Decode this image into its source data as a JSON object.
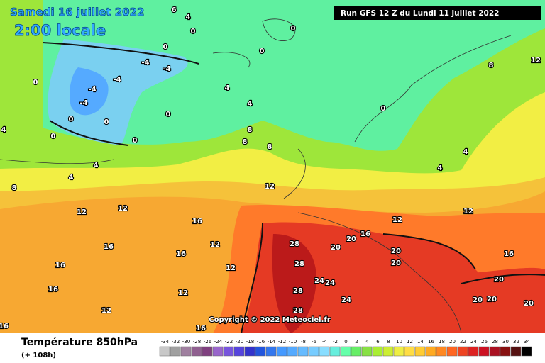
{
  "header": {
    "date": "Samedi 16 juillet 2022",
    "time": "2:00 locale",
    "run": "Run GFS 12 Z du Lundi 11 juillet 2022"
  },
  "copyright": "Copyright © 2022 Meteociel.fr",
  "footer": {
    "title": "Température 850hPa",
    "lead": "(+ 108h)"
  },
  "legend": {
    "values": [
      -34,
      -32,
      -30,
      -28,
      -26,
      -24,
      -22,
      -20,
      -18,
      -16,
      -14,
      -12,
      -10,
      -8,
      -6,
      -4,
      -2,
      0,
      2,
      4,
      6,
      8,
      10,
      12,
      14,
      16,
      18,
      20,
      22,
      24,
      26,
      28,
      30,
      32,
      34
    ],
    "colors": [
      "#c8c8c8",
      "#a0a0a0",
      "#a080a0",
      "#906090",
      "#804080",
      "#9966cc",
      "#7755dd",
      "#5544dd",
      "#3333cc",
      "#2255dd",
      "#3377ee",
      "#4499ff",
      "#55aaff",
      "#66bbff",
      "#77ccff",
      "#88ddff",
      "#66eedd",
      "#66ffaa",
      "#66ee66",
      "#88e044",
      "#aaee33",
      "#ccee33",
      "#eeee44",
      "#ffdd44",
      "#ffcc33",
      "#ffaa22",
      "#ff8822",
      "#ff6622",
      "#ee4422",
      "#dd2222",
      "#cc1122",
      "#aa1122",
      "#881111",
      "#551111",
      "#000000"
    ]
  },
  "map": {
    "contour_labels": [
      6,
      4,
      0,
      0,
      0,
      0,
      -4,
      -4,
      -4,
      -4,
      -4,
      0,
      0,
      0,
      0,
      0,
      0,
      4,
      4,
      4,
      4,
      4,
      8,
      8,
      8,
      8,
      0,
      4,
      4,
      8,
      12,
      12,
      12,
      12,
      16,
      16,
      16,
      16,
      16,
      12,
      12,
      12,
      12,
      16,
      16,
      28,
      28,
      28,
      28,
      24,
      24,
      24,
      20,
      20,
      16,
      20,
      20,
      12,
      12,
      16,
      20,
      20,
      20,
      20
    ]
  }
}
